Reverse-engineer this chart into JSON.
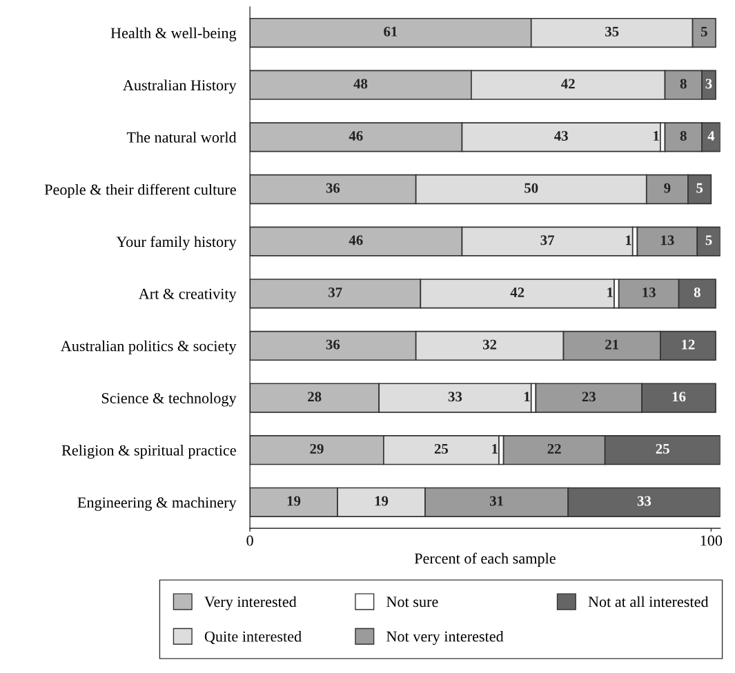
{
  "chart_data": {
    "type": "bar",
    "orientation": "horizontal",
    "stacked": true,
    "xlabel": "Percent of each sample",
    "categories": [
      "Health & well-being",
      "Australian History",
      "The natural world",
      "People & their different culture",
      "Your family history",
      "Art & creativity",
      "Australian politics & society",
      "Science & technology",
      "Religion & spiritual practice",
      "Engineering & machinery"
    ],
    "series": [
      {
        "name": "Very interested",
        "color": "#b9b9b9",
        "values": [
          61,
          48,
          46,
          36,
          46,
          37,
          36,
          28,
          29,
          19
        ]
      },
      {
        "name": "Quite interested",
        "color": "#dddddd",
        "values": [
          35,
          42,
          43,
          50,
          37,
          42,
          32,
          33,
          25,
          19
        ]
      },
      {
        "name": "Not sure",
        "color": "#ffffff",
        "values": [
          null,
          null,
          1,
          null,
          1,
          1,
          null,
          1,
          1,
          null
        ]
      },
      {
        "name": "Not very interested",
        "color": "#9b9b9b",
        "values": [
          5,
          8,
          8,
          9,
          13,
          13,
          21,
          23,
          22,
          31
        ]
      },
      {
        "name": "Not at all interested",
        "color": "#656565",
        "values": [
          null,
          3,
          4,
          5,
          5,
          8,
          12,
          16,
          25,
          33
        ]
      }
    ],
    "xlim": [
      0,
      102
    ],
    "xticks": [
      0,
      100
    ],
    "data_labels": true,
    "legend": "bottom",
    "grid": false
  }
}
